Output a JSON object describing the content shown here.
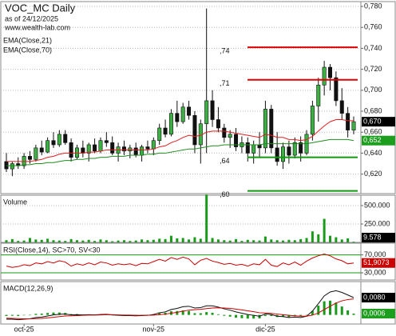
{
  "chart_data": [
    {
      "type": "candlestick",
      "title": "VOC_MC Daily",
      "subtitle": "as of 24/12/2025",
      "source": "www.wealth-lab.com",
      "categories": [
        null,
        null,
        null,
        "oct-25",
        null,
        null,
        null,
        null,
        null,
        null,
        null,
        null,
        null,
        null,
        null,
        null,
        null,
        null,
        null,
        null,
        null,
        null,
        null,
        null,
        null,
        "nov-25",
        null,
        null,
        null,
        null,
        null,
        null,
        null,
        null,
        null,
        null,
        null,
        null,
        null,
        null,
        null,
        null,
        null,
        null,
        "dic-25",
        null,
        null,
        null,
        null,
        null,
        null,
        null,
        null,
        null,
        null,
        null,
        null,
        null,
        null,
        null
      ],
      "open": [
        0.632,
        0.625,
        0.63,
        0.628,
        0.637,
        0.634,
        0.645,
        0.641,
        0.652,
        0.648,
        0.658,
        0.65,
        0.636,
        0.645,
        0.64,
        0.648,
        0.642,
        0.652,
        0.65,
        0.64,
        0.646,
        0.642,
        0.645,
        0.638,
        0.646,
        0.644,
        0.652,
        0.664,
        0.658,
        0.678,
        0.67,
        0.684,
        0.676,
        0.648,
        0.668,
        0.69,
        0.672,
        0.664,
        0.655,
        0.658,
        0.646,
        0.65,
        0.64,
        0.648,
        0.645,
        0.682,
        0.645,
        0.632,
        0.646,
        0.638,
        0.65,
        0.64,
        0.658,
        0.685,
        0.705,
        0.722,
        0.712,
        0.69,
        0.678,
        0.662
      ],
      "high": [
        0.64,
        0.632,
        0.636,
        0.64,
        0.642,
        0.648,
        0.652,
        0.655,
        0.66,
        0.662,
        0.662,
        0.654,
        0.648,
        0.652,
        0.65,
        0.654,
        0.655,
        0.66,
        0.656,
        0.65,
        0.652,
        0.648,
        0.65,
        0.648,
        0.652,
        0.655,
        0.668,
        0.672,
        0.682,
        0.69,
        0.688,
        0.69,
        0.68,
        0.672,
        0.778,
        0.7,
        0.684,
        0.668,
        0.662,
        0.664,
        0.656,
        0.655,
        0.652,
        0.66,
        0.69,
        0.686,
        0.66,
        0.65,
        0.652,
        0.655,
        0.656,
        0.662,
        0.69,
        0.712,
        0.728,
        0.725,
        0.718,
        0.702,
        0.684,
        0.675
      ],
      "low": [
        0.622,
        0.618,
        0.625,
        0.625,
        0.63,
        0.632,
        0.638,
        0.64,
        0.645,
        0.646,
        0.648,
        0.632,
        0.634,
        0.636,
        0.632,
        0.64,
        0.64,
        0.646,
        0.638,
        0.632,
        0.638,
        0.635,
        0.636,
        0.632,
        0.64,
        0.638,
        0.648,
        0.655,
        0.656,
        0.665,
        0.668,
        0.672,
        0.64,
        0.63,
        0.64,
        0.665,
        0.66,
        0.65,
        0.645,
        0.642,
        0.64,
        0.632,
        0.63,
        0.636,
        0.64,
        0.64,
        0.628,
        0.625,
        0.63,
        0.635,
        0.632,
        0.638,
        0.652,
        0.67,
        0.695,
        0.7,
        0.685,
        0.672,
        0.655,
        0.658
      ],
      "close": [
        0.625,
        0.63,
        0.628,
        0.637,
        0.634,
        0.645,
        0.641,
        0.652,
        0.648,
        0.658,
        0.65,
        0.636,
        0.645,
        0.64,
        0.648,
        0.642,
        0.652,
        0.65,
        0.64,
        0.646,
        0.642,
        0.645,
        0.638,
        0.646,
        0.644,
        0.652,
        0.664,
        0.658,
        0.678,
        0.67,
        0.684,
        0.676,
        0.648,
        0.668,
        0.69,
        0.672,
        0.664,
        0.655,
        0.658,
        0.646,
        0.65,
        0.64,
        0.648,
        0.645,
        0.682,
        0.645,
        0.632,
        0.646,
        0.638,
        0.65,
        0.64,
        0.658,
        0.685,
        0.705,
        0.722,
        0.712,
        0.69,
        0.678,
        0.662,
        0.67
      ],
      "up_color": "#3cb043",
      "down_color": "#111111",
      "series": [
        {
          "name": "EMA(Close,21)",
          "color": "#e02020",
          "values": [
            0.632,
            0.632,
            0.632,
            0.632,
            0.632,
            0.633,
            0.634,
            0.636,
            0.637,
            0.639,
            0.64,
            0.64,
            0.64,
            0.64,
            0.641,
            0.641,
            0.642,
            0.643,
            0.643,
            0.643,
            0.643,
            0.643,
            0.643,
            0.643,
            0.643,
            0.644,
            0.646,
            0.647,
            0.65,
            0.652,
            0.655,
            0.657,
            0.656,
            0.657,
            0.66,
            0.661,
            0.661,
            0.661,
            0.66,
            0.659,
            0.658,
            0.657,
            0.656,
            0.655,
            0.658,
            0.657,
            0.655,
            0.655,
            0.653,
            0.653,
            0.652,
            0.653,
            0.656,
            0.661,
            0.666,
            0.67,
            0.672,
            0.672,
            0.671,
            0.671
          ]
        },
        {
          "name": "EMA(Close,70)",
          "color": "#1e8c1e",
          "values": [
            0.628,
            0.628,
            0.628,
            0.629,
            0.629,
            0.63,
            0.63,
            0.631,
            0.631,
            0.632,
            0.633,
            0.633,
            0.634,
            0.634,
            0.635,
            0.635,
            0.636,
            0.636,
            0.637,
            0.637,
            0.637,
            0.638,
            0.638,
            0.638,
            0.639,
            0.639,
            0.64,
            0.64,
            0.641,
            0.642,
            0.643,
            0.644,
            0.644,
            0.645,
            0.646,
            0.647,
            0.647,
            0.648,
            0.648,
            0.648,
            0.648,
            0.648,
            0.648,
            0.648,
            0.649,
            0.649,
            0.649,
            0.649,
            0.649,
            0.649,
            0.649,
            0.649,
            0.65,
            0.651,
            0.652,
            0.653,
            0.653,
            0.653,
            0.653,
            0.652
          ]
        }
      ],
      "levels": [
        {
          "value": 0.741,
          "label": ",74",
          "color": "#e00000"
        },
        {
          "value": 0.71,
          "label": ",71",
          "color": "#e00000"
        },
        {
          "value": 0.636,
          "label": ",64",
          "color": "#119911"
        },
        {
          "value": 0.604,
          "label": ",60",
          "color": "#119911"
        }
      ],
      "ylim": [
        0.6014,
        0.7846
      ],
      "yticks": [
        {
          "value": 0.62,
          "label": "0,620"
        },
        {
          "value": 0.64,
          "label": "0,640"
        },
        {
          "value": 0.66,
          "label": "0,660"
        },
        {
          "value": 0.68,
          "label": "0,680"
        },
        {
          "value": 0.7,
          "label": "0,700"
        },
        {
          "value": 0.72,
          "label": "0,720"
        },
        {
          "value": 0.74,
          "label": "0,740"
        },
        {
          "value": 0.76,
          "label": "0,760"
        },
        {
          "value": 0.78,
          "label": "0,780"
        }
      ],
      "last_labels": [
        {
          "value": 0.67,
          "label": "0,670",
          "color": "#000000"
        },
        {
          "value": 0.652,
          "label": "0,652",
          "color": "#1e9e1e"
        }
      ],
      "grid": true
    },
    {
      "type": "bar",
      "title": "Volume",
      "color": "#1a9a1a",
      "values": [
        30000,
        45000,
        20000,
        25000,
        60000,
        40000,
        35000,
        50000,
        30000,
        25000,
        20000,
        45000,
        30000,
        25000,
        35000,
        20000,
        40000,
        30000,
        15000,
        25000,
        30000,
        20000,
        25000,
        40000,
        30000,
        35000,
        50000,
        45000,
        90000,
        55000,
        60000,
        40000,
        70000,
        50000,
        650000,
        60000,
        40000,
        30000,
        25000,
        45000,
        20000,
        35000,
        30000,
        25000,
        80000,
        40000,
        30000,
        25000,
        35000,
        30000,
        45000,
        60000,
        150000,
        110000,
        320000,
        90000,
        70000,
        40000,
        55000,
        9578
      ],
      "ylim": [
        0,
        641000
      ],
      "yticks": [
        {
          "value": 250000,
          "label": "250.000"
        },
        {
          "value": 500000,
          "label": "500.000"
        }
      ],
      "last_labels": [
        {
          "value": 9578,
          "label": "9.578",
          "color": "#000000"
        }
      ],
      "grid": true
    },
    {
      "type": "line",
      "title": "RSI(Close,14), SC>70, SV<30",
      "series": [
        {
          "color": "#cc0000",
          "values": [
            45,
            42,
            44,
            48,
            46,
            52,
            50,
            55,
            52,
            57,
            54,
            45,
            50,
            47,
            52,
            48,
            54,
            52,
            47,
            50,
            48,
            50,
            46,
            51,
            50,
            55,
            60,
            56,
            64,
            60,
            65,
            61,
            48,
            58,
            62,
            56,
            53,
            49,
            51,
            47,
            49,
            45,
            50,
            48,
            60,
            47,
            44,
            52,
            48,
            54,
            47,
            56,
            63,
            68,
            72,
            68,
            61,
            57,
            50,
            51.9073
          ]
        }
      ],
      "ylim": [
        14,
        96
      ],
      "yticks": [
        {
          "value": 30,
          "label": "30,000"
        },
        {
          "value": 70,
          "label": "70,000"
        }
      ],
      "tick_line_color": "#119911",
      "last_labels": [
        {
          "value": 51.9073,
          "label": "51,9073",
          "color": "#cc0000"
        }
      ]
    },
    {
      "type": "macd",
      "title": "MACD(12,26,9)",
      "series": [
        {
          "style": "bar",
          "color": "#1a9a1a",
          "values": [
            -0.0005,
            -0.0004,
            -0.0005,
            -0.0002,
            0,
            0.0005,
            0.0006,
            0.0009,
            0.0011,
            0.0011,
            0.0009,
            0.0004,
            0.0004,
            0.0002,
            0.0002,
            0.0001,
            0.0002,
            0.0002,
            -0.0001,
            -0.0002,
            -0.0002,
            -0.0002,
            -0.0002,
            -0.0001,
            0,
            0.0003,
            0.0009,
            0.001,
            0.0017,
            0.0018,
            0.0021,
            0.0018,
            0.0008,
            0.0008,
            0.0013,
            0.001,
            0.0003,
            -0.0004,
            -0.0008,
            -0.0013,
            -0.0015,
            -0.0017,
            -0.0017,
            -0.0016,
            -0.0005,
            -0.0005,
            -0.001,
            -0.0009,
            -0.001,
            -0.0006,
            -0.0006,
            0,
            0.0019,
            0.0043,
            0.0063,
            0.0066,
            0.0057,
            0.0039,
            0.0021,
            0.0006
          ]
        },
        {
          "style": "line",
          "color": "#111111",
          "values": [
            -0.002,
            -0.002,
            -0.0022,
            -0.002,
            -0.0018,
            -0.0012,
            -0.001,
            -0.0005,
            0,
            0.0003,
            0.0004,
            0,
            0.0001,
            0,
            0.0001,
            0,
            0.0002,
            0.0003,
            0,
            -0.0002,
            -0.0003,
            -0.0003,
            -0.0004,
            -0.0003,
            -0.0002,
            0.0002,
            0.001,
            0.0014,
            0.0025,
            0.003,
            0.0038,
            0.004,
            0.0032,
            0.0034,
            0.0042,
            0.0042,
            0.0036,
            0.0028,
            0.0022,
            0.0014,
            0.0008,
            0.0002,
            -0.0002,
            -0.0006,
            0.0004,
            0.0002,
            -0.0006,
            -0.0008,
            -0.0012,
            -0.001,
            -0.0012,
            -0.0006,
            0.0018,
            0.0052,
            0.0088,
            0.0106,
            0.0112,
            0.0104,
            0.0092,
            0.008
          ]
        },
        {
          "style": "line",
          "color": "#cc0000",
          "values": [
            -0.0015,
            -0.0016,
            -0.0017,
            -0.0018,
            -0.0018,
            -0.0017,
            -0.0016,
            -0.0014,
            -0.0011,
            -0.0008,
            -0.0005,
            -0.0004,
            -0.0003,
            -0.0002,
            -0.0001,
            -0.0001,
            0,
            0.0001,
            0.0001,
            0,
            -0.0001,
            -0.0001,
            -0.0002,
            -0.0002,
            -0.0002,
            -0.0001,
            0.0001,
            0.0004,
            0.0008,
            0.0012,
            0.0017,
            0.0022,
            0.0024,
            0.0026,
            0.0029,
            0.0032,
            0.0033,
            0.0032,
            0.003,
            0.0027,
            0.0023,
            0.0019,
            0.0015,
            0.001,
            0.0009,
            0.0007,
            0.0004,
            0.0001,
            -0.0002,
            -0.0004,
            -0.0006,
            -0.0006,
            -0.0001,
            0.0009,
            0.0025,
            0.004,
            0.0055,
            0.0065,
            0.0071,
            0.0074
          ]
        }
      ],
      "ylim": [
        -0.0042,
        0.0154
      ],
      "last_labels": [
        {
          "value": 0.008,
          "label": "0,0080",
          "color": "#000000"
        },
        {
          "value": 0.0006,
          "label": "0,0006",
          "color": "#1e9e1e"
        }
      ]
    }
  ]
}
